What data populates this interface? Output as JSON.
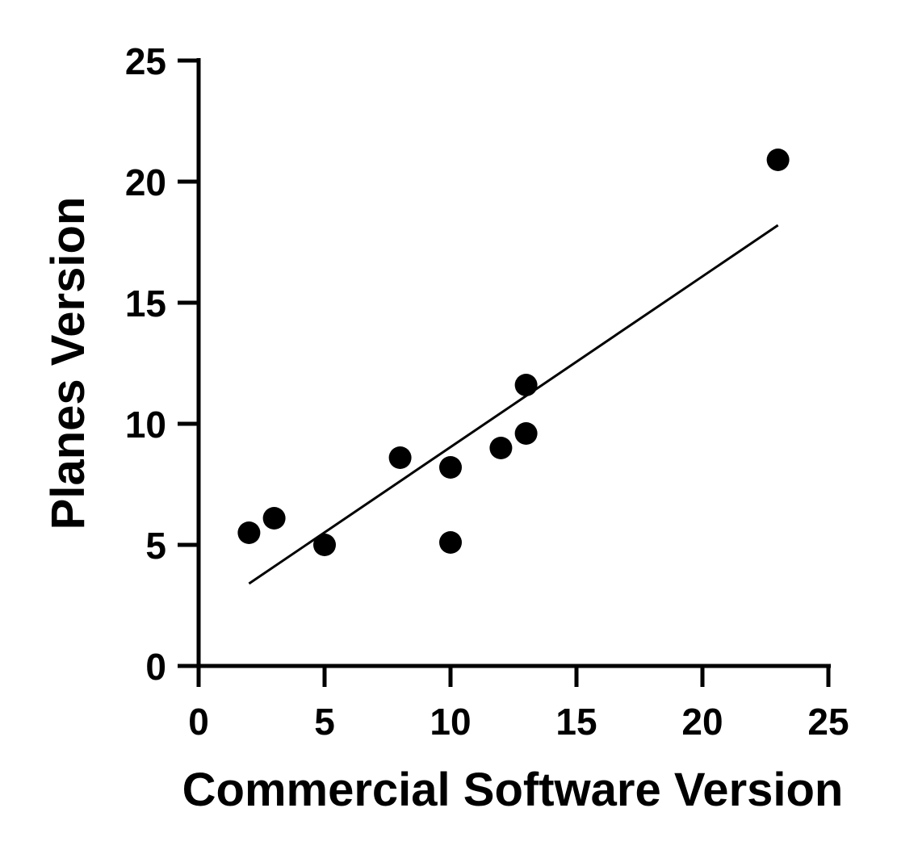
{
  "chart_data": {
    "type": "scatter",
    "title": "",
    "xlabel": "Commercial Software Version",
    "ylabel": "Planes Version",
    "xlim": [
      0,
      25
    ],
    "ylim": [
      0,
      25
    ],
    "x_ticks": [
      0,
      5,
      10,
      15,
      20,
      25
    ],
    "y_ticks": [
      0,
      5,
      10,
      15,
      20,
      25
    ],
    "x_tick_labels": [
      "0",
      "5",
      "10",
      "15",
      "20",
      "25"
    ],
    "y_tick_labels": [
      "0",
      "5",
      "10",
      "15",
      "20",
      "25"
    ],
    "grid": false,
    "legend": "none",
    "series": [
      {
        "points": [
          {
            "x": 2,
            "y": 5.5
          },
          {
            "x": 3,
            "y": 6.1
          },
          {
            "x": 5,
            "y": 5.0
          },
          {
            "x": 8,
            "y": 8.6
          },
          {
            "x": 10,
            "y": 8.2
          },
          {
            "x": 10,
            "y": 5.1
          },
          {
            "x": 12,
            "y": 9.0
          },
          {
            "x": 13,
            "y": 11.6
          },
          {
            "x": 13,
            "y": 9.6
          },
          {
            "x": 23,
            "y": 20.9
          }
        ],
        "color": "#000000"
      }
    ],
    "fit_line": {
      "x": [
        2,
        23
      ],
      "y": [
        3.4,
        18.2
      ],
      "color": "#000000"
    }
  }
}
